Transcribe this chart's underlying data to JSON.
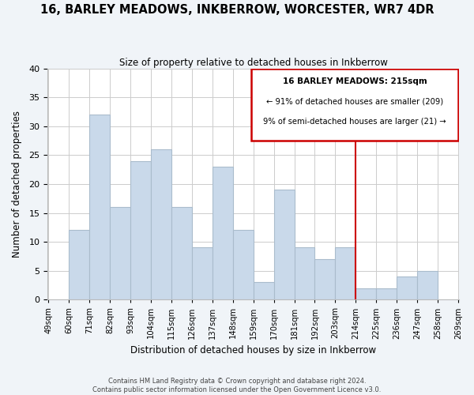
{
  "title": "16, BARLEY MEADOWS, INKBERROW, WORCESTER, WR7 4DR",
  "subtitle": "Size of property relative to detached houses in Inkberrow",
  "xlabel": "Distribution of detached houses by size in Inkberrow",
  "ylabel": "Number of detached properties",
  "bin_labels": [
    "49sqm",
    "60sqm",
    "71sqm",
    "82sqm",
    "93sqm",
    "104sqm",
    "115sqm",
    "126sqm",
    "137sqm",
    "148sqm",
    "159sqm",
    "170sqm",
    "181sqm",
    "192sqm",
    "203sqm",
    "214sqm",
    "225sqm",
    "236sqm",
    "247sqm",
    "258sqm",
    "269sqm"
  ],
  "bar_values": [
    0,
    12,
    32,
    16,
    24,
    26,
    16,
    9,
    23,
    12,
    3,
    19,
    9,
    7,
    9,
    2,
    2,
    4,
    5,
    0
  ],
  "bar_color": "#c9d9ea",
  "bar_edge_color": "#aabccc",
  "vline_color": "#cc0000",
  "vline_x": 15,
  "ylim": [
    0,
    40
  ],
  "yticks": [
    0,
    5,
    10,
    15,
    20,
    25,
    30,
    35,
    40
  ],
  "annotation_title": "16 BARLEY MEADOWS: 215sqm",
  "annotation_line1": "← 91% of detached houses are smaller (209)",
  "annotation_line2": "9% of semi-detached houses are larger (21) →",
  "footer1": "Contains HM Land Registry data © Crown copyright and database right 2024.",
  "footer2": "Contains public sector information licensed under the Open Government Licence v3.0.",
  "background_color": "#f0f4f8",
  "plot_background": "#ffffff",
  "grid_color": "#cccccc"
}
